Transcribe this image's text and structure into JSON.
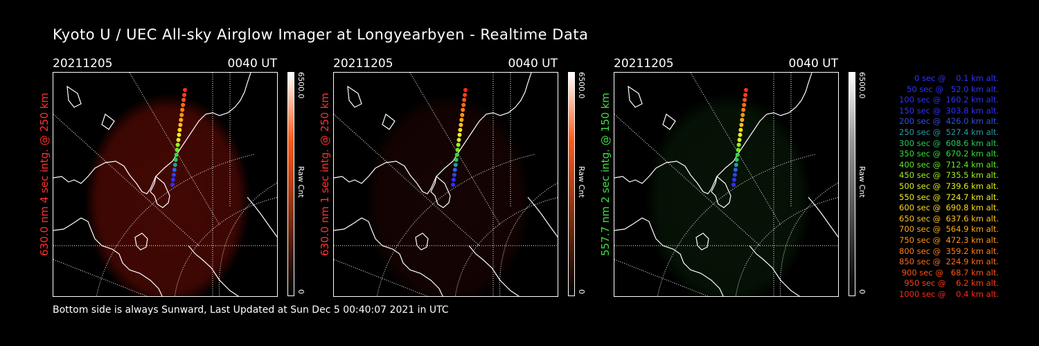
{
  "title": "Kyoto U / UEC All-sky Airglow Imager at Longyearbyen - Realtime Data",
  "footer": "Bottom side is always Sunward, Last Updated at Sun Dec  5 00:40:07 2021 in UTC",
  "panels": [
    {
      "date": "20211205",
      "time": "0040 UT",
      "ylabel": "630.0 nm 4 sec intg. @ 250 km",
      "label_color": "#ff3030",
      "glow_color": "#7a0e06",
      "glow_opacity": 0.55,
      "cbar_max": "6500.0",
      "cbar_min": "0",
      "cbar_unit": "Raw Cnt",
      "cbar_top": "#ffffff",
      "cbar_mid": "#ff5a1a",
      "cbar_bottom": "#000000"
    },
    {
      "date": "20211205",
      "time": "0040 UT",
      "ylabel": "630.0 nm 1 sec intg. @ 250 km",
      "label_color": "#ff3030",
      "glow_color": "#3a0a05",
      "glow_opacity": 0.35,
      "cbar_max": "6500.0",
      "cbar_min": "0",
      "cbar_unit": "Raw Cnt",
      "cbar_top": "#ffffff",
      "cbar_mid": "#ff5a1a",
      "cbar_bottom": "#000000"
    },
    {
      "date": "20211205",
      "time": "0040 UT",
      "ylabel": "557.7 nm 2 sec intg. @ 150 km",
      "label_color": "#40e040",
      "glow_color": "#0d2a0d",
      "glow_opacity": 0.45,
      "cbar_max": "6500.0",
      "cbar_min": "0",
      "cbar_unit": "Raw Cnt",
      "cbar_top": "#ffffff",
      "cbar_mid": "#9a9a9a",
      "cbar_bottom": "#000000"
    }
  ],
  "legend": [
    {
      "text": "0 sec @    0.1 km alt.",
      "color": "#3030ff"
    },
    {
      "text": "50 sec @   52.0 km alt.",
      "color": "#3030ff"
    },
    {
      "text": "100 sec @  160.2 km alt.",
      "color": "#3030ff"
    },
    {
      "text": "150 sec @  303.8 km alt.",
      "color": "#3030ff"
    },
    {
      "text": "200 sec @  426.0 km alt.",
      "color": "#3050e0"
    },
    {
      "text": "250 sec @  527.4 km alt.",
      "color": "#2a9aa8"
    },
    {
      "text": "300 sec @  608.6 km alt.",
      "color": "#22c860"
    },
    {
      "text": "350 sec @  670.2 km alt.",
      "color": "#30e030"
    },
    {
      "text": "400 sec @  712.4 km alt.",
      "color": "#60e828"
    },
    {
      "text": "450 sec @  735.5 km alt.",
      "color": "#9ef020"
    },
    {
      "text": "500 sec @  739.6 km alt.",
      "color": "#d8f020"
    },
    {
      "text": "550 sec @  724.7 km alt.",
      "color": "#f0f020"
    },
    {
      "text": "600 sec @  690.8 km alt.",
      "color": "#ffd820"
    },
    {
      "text": "650 sec @  637.6 km alt.",
      "color": "#ffc020"
    },
    {
      "text": "700 sec @  564.9 km alt.",
      "color": "#ffa818"
    },
    {
      "text": "750 sec @  472.3 km alt.",
      "color": "#ff9418"
    },
    {
      "text": "800 sec @  359.2 km alt.",
      "color": "#ff8018"
    },
    {
      "text": "850 sec @  224.9 km alt.",
      "color": "#ff6a18"
    },
    {
      "text": "900 sec @   68.7 km alt.",
      "color": "#ff5418"
    },
    {
      "text": "950 sec @    6.2 km alt.",
      "color": "#ff4018"
    },
    {
      "text": "1000 sec @    0.4 km alt.",
      "color": "#ff2a18"
    }
  ]
}
